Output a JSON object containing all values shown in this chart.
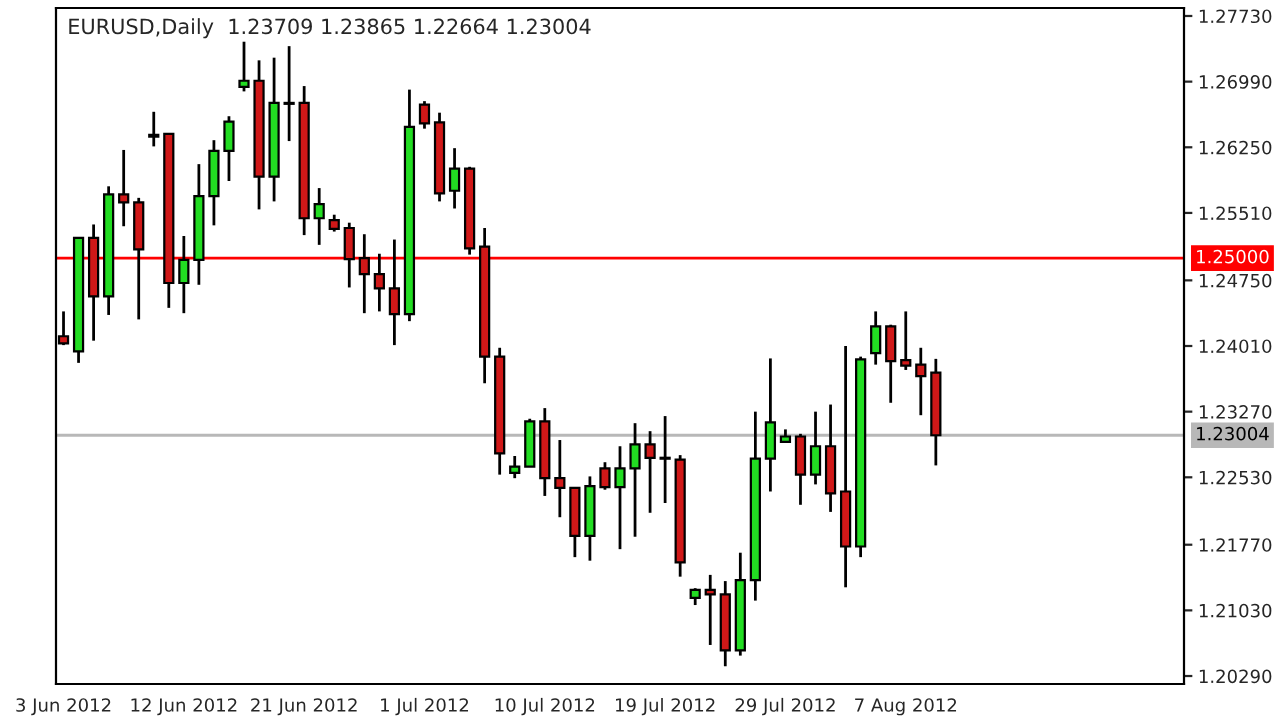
{
  "chart_data": {
    "type": "candlestick",
    "title": "EURUSD,Daily  1.23709 1.23865 1.22664 1.23004",
    "categories": [
      "3 Jun 2012",
      null,
      null,
      null,
      null,
      null,
      null,
      null,
      "12 Jun 2012",
      null,
      null,
      null,
      null,
      null,
      null,
      null,
      "21 Jun 2012",
      null,
      null,
      null,
      null,
      null,
      null,
      null,
      "1 Jul 2012",
      null,
      null,
      null,
      null,
      null,
      null,
      null,
      "10 Jul 2012",
      null,
      null,
      null,
      null,
      null,
      null,
      null,
      "19 Jul 2012",
      null,
      null,
      null,
      null,
      null,
      null,
      null,
      "29 Jul 2012",
      null,
      null,
      null,
      null,
      null,
      null,
      null,
      "7 Aug 2012",
      null,
      null,
      null,
      null,
      null,
      null,
      null,
      null,
      null,
      null,
      null,
      null,
      null,
      null,
      null,
      null,
      null,
      null
    ],
    "ohlc": [
      [
        1.2412,
        1.244,
        1.2402,
        1.2404
      ],
      [
        1.2395,
        1.2523,
        1.2382,
        1.2523
      ],
      [
        1.2523,
        1.2538,
        1.2407,
        1.2457
      ],
      [
        1.2457,
        1.2581,
        1.2436,
        1.2572
      ],
      [
        1.2572,
        1.2622,
        1.2536,
        1.2563
      ],
      [
        1.2563,
        1.2568,
        1.2431,
        1.251
      ],
      [
        1.2639,
        1.2665,
        1.2626,
        1.2637
      ],
      [
        1.264,
        1.264,
        1.2444,
        1.2472
      ],
      [
        1.2472,
        1.2525,
        1.2438,
        1.2498
      ],
      [
        1.2498,
        1.2606,
        1.247,
        1.257
      ],
      [
        1.257,
        1.2633,
        1.2537,
        1.2621
      ],
      [
        1.2621,
        1.266,
        1.2587,
        1.2654
      ],
      [
        1.2693,
        1.2744,
        1.2688,
        1.27
      ],
      [
        1.27,
        1.2723,
        1.2555,
        1.2592
      ],
      [
        1.2592,
        1.2726,
        1.2564,
        1.2675
      ],
      [
        1.2675,
        1.2739,
        1.2632,
        1.2674
      ],
      [
        1.2675,
        1.2694,
        1.2526,
        1.2545
      ],
      [
        1.2545,
        1.2579,
        1.2515,
        1.2561
      ],
      [
        1.2543,
        1.2549,
        1.253,
        1.2533
      ],
      [
        1.2534,
        1.254,
        1.2467,
        1.2499
      ],
      [
        1.25,
        1.2527,
        1.2438,
        1.2482
      ],
      [
        1.2482,
        1.2505,
        1.244,
        1.2466
      ],
      [
        1.2466,
        1.2521,
        1.2402,
        1.2437
      ],
      [
        1.2437,
        1.269,
        1.2429,
        1.2648
      ],
      [
        1.2673,
        1.2677,
        1.2646,
        1.2652
      ],
      [
        1.2653,
        1.2664,
        1.2564,
        1.2573
      ],
      [
        1.2576,
        1.2624,
        1.2556,
        1.2601
      ],
      [
        1.2601,
        1.2603,
        1.2504,
        1.2511
      ],
      [
        1.2513,
        1.2534,
        1.2359,
        1.2389
      ],
      [
        1.2389,
        1.2399,
        1.2256,
        1.228
      ],
      [
        1.2258,
        1.2277,
        1.2252,
        1.2265
      ],
      [
        1.2265,
        1.2319,
        1.2265,
        1.2316
      ],
      [
        1.2316,
        1.2331,
        1.2232,
        1.2252
      ],
      [
        1.2252,
        1.2295,
        1.2208,
        1.2241
      ],
      [
        1.2241,
        1.2241,
        1.2163,
        1.2187
      ],
      [
        1.2187,
        1.2254,
        1.2159,
        1.2243
      ],
      [
        1.2263,
        1.227,
        1.2239,
        1.2242
      ],
      [
        1.2242,
        1.2288,
        1.2172,
        1.2263
      ],
      [
        1.2263,
        1.2314,
        1.2186,
        1.229
      ],
      [
        1.229,
        1.2305,
        1.2213,
        1.2275
      ],
      [
        1.2275,
        1.2322,
        1.2224,
        1.2274
      ],
      [
        1.2273,
        1.2278,
        1.2141,
        1.2157
      ],
      [
        1.2117,
        1.2128,
        1.2109,
        1.2126
      ],
      [
        1.2126,
        1.2143,
        1.2064,
        1.2121
      ],
      [
        1.2121,
        1.2136,
        1.204,
        1.2058
      ],
      [
        1.2058,
        1.2168,
        1.2052,
        1.2137
      ],
      [
        1.2137,
        1.2327,
        1.2114,
        1.2274
      ],
      [
        1.2274,
        1.2387,
        1.2237,
        1.2315
      ],
      [
        1.2293,
        1.2307,
        1.2293,
        1.2299
      ],
      [
        1.2299,
        1.2302,
        1.2222,
        1.2256
      ],
      [
        1.2256,
        1.2327,
        1.2245,
        1.2288
      ],
      [
        1.2288,
        1.2335,
        1.2214,
        1.2235
      ],
      [
        1.2237,
        1.2401,
        1.2129,
        1.2175
      ],
      [
        1.2175,
        1.2389,
        1.2163,
        1.2386
      ],
      [
        1.2393,
        1.244,
        1.238,
        1.2423
      ],
      [
        1.2423,
        1.2425,
        1.2337,
        1.2384
      ],
      [
        1.2385,
        1.244,
        1.2374,
        1.2379
      ],
      [
        1.238,
        1.2399,
        1.2323,
        1.2367
      ],
      [
        1.23709,
        1.23865,
        1.22664,
        1.23004
      ],
      null,
      null,
      null,
      null,
      null,
      null,
      null,
      null,
      null,
      null,
      null,
      null,
      null,
      null,
      null,
      null
    ],
    "colors": [
      "#d01818",
      "#22dd22",
      "#d01818",
      "#22dd22",
      "#d01818",
      "#d01818",
      "#d01818",
      "#d01818",
      "#22dd22",
      "#22dd22",
      "#22dd22",
      "#22dd22",
      "#22dd22",
      "#d01818",
      "#22dd22",
      "#d01818",
      "#d01818",
      "#22dd22",
      "#d01818",
      "#d01818",
      "#d01818",
      "#d01818",
      "#d01818",
      "#22dd22",
      "#d01818",
      "#d01818",
      "#22dd22",
      "#d01818",
      "#d01818",
      "#d01818",
      "#22dd22",
      "#22dd22",
      "#d01818",
      "#d01818",
      "#d01818",
      "#22dd22",
      "#d01818",
      "#22dd22",
      "#22dd22",
      "#d01818",
      "#d01818",
      "#d01818",
      "#22dd22",
      "#d01818",
      "#d01818",
      "#22dd22",
      "#22dd22",
      "#22dd22",
      "#22dd22",
      "#d01818",
      "#22dd22",
      "#d01818",
      "#d01818",
      "#22dd22",
      "#22dd22",
      "#d01818",
      "#d01818",
      "#d01818",
      "#d01818",
      null,
      null,
      null,
      null,
      null,
      null,
      null,
      null,
      null,
      null,
      null,
      null,
      null,
      null,
      null,
      null
    ],
    "ylim": [
      1.202,
      1.2782
    ],
    "yticks": [
      {
        "value": 1.2773,
        "label": "1.27730"
      },
      {
        "value": 1.2699,
        "label": "1.26990"
      },
      {
        "value": 1.2625,
        "label": "1.26250"
      },
      {
        "value": 1.2551,
        "label": "1.25510"
      },
      {
        "value": 1.2475,
        "label": "1.24750"
      },
      {
        "value": 1.2401,
        "label": "1.24010"
      },
      {
        "value": 1.2327,
        "label": "1.23270"
      },
      {
        "value": 1.2253,
        "label": "1.22530"
      },
      {
        "value": 1.2177,
        "label": "1.21770"
      },
      {
        "value": 1.2103,
        "label": "1.21030"
      },
      {
        "value": 1.2029,
        "label": "1.20290"
      }
    ],
    "ref_lines": [
      {
        "axis": "y",
        "value": 1.25,
        "label": "1.25000",
        "color": "#ff0000"
      },
      {
        "axis": "y",
        "value": 1.23004,
        "label": "1.23004",
        "color": "#b8b8b8"
      }
    ],
    "grid": false
  }
}
